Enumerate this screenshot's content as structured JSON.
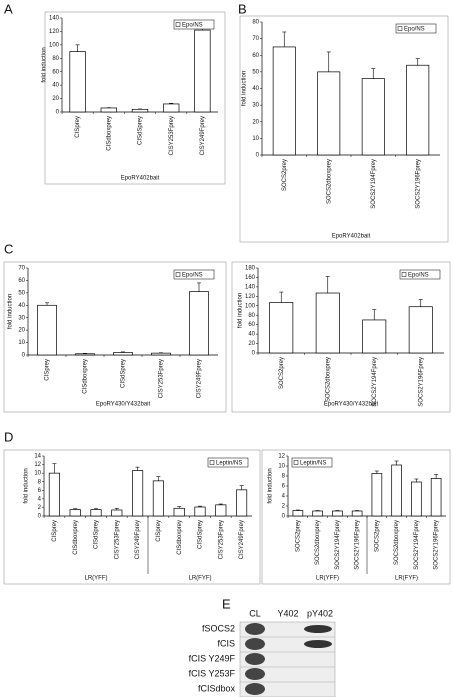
{
  "panels": [
    "A",
    "B",
    "C",
    "D",
    "E"
  ],
  "chart_data": [
    {
      "type": "bar",
      "y_label": "fold induction",
      "x_label": "EpoRY402bait",
      "legend": "upper right",
      "categories": [
        "CISprey",
        "CISdboxprey",
        "CISdSprey",
        "CISY253Fprey",
        "CISY249Fprey"
      ],
      "series": [
        {
          "name": "Epo/NS",
          "color": "#ffffff",
          "values": [
            90,
            6,
            4,
            12,
            122
          ],
          "errors": [
            10,
            0.5,
            0.5,
            1,
            7
          ]
        }
      ],
      "ylim": [
        0,
        140
      ],
      "yticks": [
        0,
        20,
        40,
        60,
        80,
        100,
        120,
        140
      ]
    },
    {
      "type": "bar",
      "y_label": "fold induction",
      "x_label": "EpoRY402bait",
      "legend": "upper right",
      "categories": [
        "SOCS2prey",
        "SOCS2dboxprey",
        "SOCS2Y194Fprey",
        "SOCS2Y196Fprey"
      ],
      "series": [
        {
          "name": "Epo/NS",
          "color": "#ffffff",
          "values": [
            65,
            50,
            46,
            54
          ],
          "errors": [
            9,
            12,
            6,
            4
          ]
        }
      ],
      "ylim": [
        0,
        80
      ],
      "yticks": [
        0,
        10,
        20,
        30,
        40,
        50,
        60,
        70,
        80
      ]
    },
    {
      "type": "bar",
      "y_label": "fold induction",
      "x_label": "EpoRY430/Y432bait",
      "legend": "upper right",
      "categories": [
        "CISprey",
        "CISdboxprey",
        "CISdSprey",
        "CISY253Fprey",
        "CISY249Fprey"
      ],
      "series": [
        {
          "name": "Epo/NS",
          "color": "#ffffff",
          "values": [
            40,
            1,
            2,
            1.5,
            51
          ],
          "errors": [
            2,
            0.3,
            0.5,
            0.3,
            7
          ]
        }
      ],
      "ylim": [
        0,
        70
      ],
      "yticks": [
        0,
        10,
        20,
        30,
        40,
        50,
        60,
        70
      ]
    },
    {
      "type": "bar",
      "y_label": "fold induction",
      "x_label": "EpoRY430/Y432bait",
      "legend": "upper right",
      "categories": [
        "SOCS2prey",
        "SOCS2dboxprey",
        "SOCS2Y194Fprey",
        "SOCS2Y196Fprey"
      ],
      "series": [
        {
          "name": "Epo/NS",
          "color": "#ffffff",
          "values": [
            107,
            127,
            70,
            98
          ],
          "errors": [
            22,
            35,
            22,
            15
          ]
        }
      ],
      "ylim": [
        0,
        180
      ],
      "yticks": [
        0,
        20,
        40,
        60,
        80,
        100,
        120,
        140,
        160,
        180
      ]
    },
    {
      "type": "bar",
      "y_label": "fold induction",
      "group_labels": [
        "LR(YFF)",
        "LR(FYF)"
      ],
      "legend": "upper right",
      "categories": [
        "CISprey",
        "CISdboxprey",
        "CISdSprey",
        "CISY253Fprey",
        "CISY249Fprey",
        "CISprey",
        "CISdboxprey",
        "CISdSprey",
        "CISY253Fprey",
        "CISY249Fprey"
      ],
      "series": [
        {
          "name": "Leptin/NS",
          "color": "#ffffff",
          "values": [
            10,
            1.5,
            1.5,
            1.4,
            10.6,
            8.2,
            1.8,
            2.1,
            2.6,
            6.1
          ],
          "errors": [
            2.2,
            0.2,
            0.2,
            0.4,
            0.8,
            1,
            0.4,
            0.2,
            0.2,
            1
          ]
        }
      ],
      "ylim": [
        0,
        14
      ],
      "yticks": [
        0,
        2,
        4,
        6,
        8,
        10,
        12,
        14
      ]
    },
    {
      "type": "bar",
      "y_label": "fold induction",
      "group_labels": [
        "LR(YFF)",
        "LR(FYF)"
      ],
      "legend": "upper left",
      "categories": [
        "SOCS2prey",
        "SOCS2dboxprey",
        "SOCS2Y194Fprey",
        "SOCS2Y196Fprey",
        "SOCS2prey",
        "SOCS2dboxprey",
        "SOCS2Y194Fprey",
        "SOCS2Y196Fprey"
      ],
      "series": [
        {
          "name": "Leptin/NS",
          "color": "#ffffff",
          "values": [
            1.1,
            1,
            1,
            1,
            8.5,
            10.2,
            6.8,
            7.5
          ],
          "errors": [
            0.1,
            0.1,
            0.1,
            0.1,
            0.5,
            0.8,
            0.6,
            0.8
          ]
        }
      ],
      "ylim": [
        0,
        12
      ],
      "yticks": [
        0,
        2,
        4,
        6,
        8,
        10,
        12
      ]
    }
  ],
  "blot": {
    "columns": [
      "CL",
      "Y402",
      "pY402"
    ],
    "rows": [
      "fSOCS2",
      "fCIS",
      "fCIS Y249F",
      "fCIS Y253F",
      "fCISdbox"
    ]
  }
}
